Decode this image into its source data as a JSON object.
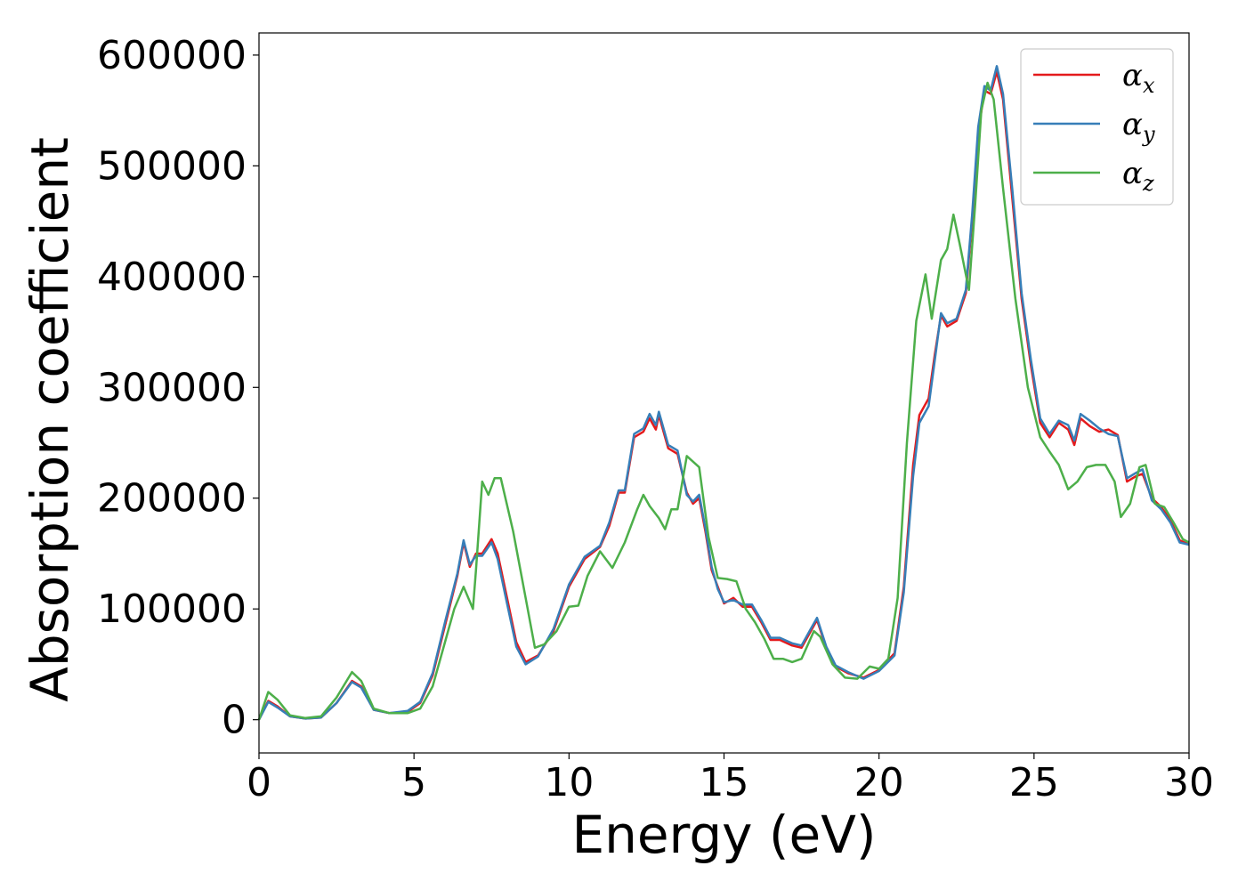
{
  "chart_data": {
    "type": "line",
    "title": "",
    "xlabel": "Energy (eV)",
    "ylabel": "Absorption coefficient",
    "xlim": [
      0,
      30
    ],
    "ylim": [
      -30000,
      620000
    ],
    "xticks": [
      0,
      5,
      10,
      15,
      20,
      25,
      30
    ],
    "yticks": [
      0,
      100000,
      200000,
      300000,
      400000,
      500000,
      600000
    ],
    "grid": false,
    "legend_position": "top-right",
    "series": [
      {
        "name": "αx",
        "symbol": "α",
        "subscript": "x",
        "color": "#e41a1c",
        "points": [
          [
            0,
            0
          ],
          [
            0.3,
            17000
          ],
          [
            0.6,
            12000
          ],
          [
            1.0,
            3000
          ],
          [
            1.5,
            1000
          ],
          [
            2.0,
            2000
          ],
          [
            2.5,
            15000
          ],
          [
            3.0,
            35000
          ],
          [
            3.3,
            30000
          ],
          [
            3.7,
            9000
          ],
          [
            4.2,
            6000
          ],
          [
            4.8,
            7000
          ],
          [
            5.2,
            15000
          ],
          [
            5.6,
            40000
          ],
          [
            6.0,
            85000
          ],
          [
            6.4,
            130000
          ],
          [
            6.6,
            160000
          ],
          [
            6.8,
            138000
          ],
          [
            7.0,
            150000
          ],
          [
            7.2,
            150000
          ],
          [
            7.5,
            163000
          ],
          [
            7.7,
            150000
          ],
          [
            8.0,
            110000
          ],
          [
            8.3,
            70000
          ],
          [
            8.6,
            52000
          ],
          [
            9.0,
            58000
          ],
          [
            9.5,
            80000
          ],
          [
            10.0,
            120000
          ],
          [
            10.5,
            145000
          ],
          [
            11.0,
            156000
          ],
          [
            11.3,
            175000
          ],
          [
            11.6,
            205000
          ],
          [
            11.8,
            205000
          ],
          [
            12.1,
            255000
          ],
          [
            12.4,
            260000
          ],
          [
            12.6,
            272000
          ],
          [
            12.8,
            262000
          ],
          [
            12.9,
            275000
          ],
          [
            13.2,
            245000
          ],
          [
            13.5,
            240000
          ],
          [
            13.8,
            205000
          ],
          [
            14.0,
            195000
          ],
          [
            14.2,
            200000
          ],
          [
            14.4,
            170000
          ],
          [
            14.6,
            135000
          ],
          [
            14.8,
            120000
          ],
          [
            15.0,
            105000
          ],
          [
            15.3,
            110000
          ],
          [
            15.6,
            102000
          ],
          [
            15.9,
            102000
          ],
          [
            16.2,
            88000
          ],
          [
            16.5,
            72000
          ],
          [
            16.8,
            72000
          ],
          [
            17.2,
            67000
          ],
          [
            17.5,
            65000
          ],
          [
            17.8,
            80000
          ],
          [
            18.0,
            90000
          ],
          [
            18.3,
            65000
          ],
          [
            18.6,
            48000
          ],
          [
            19.0,
            42000
          ],
          [
            19.5,
            38000
          ],
          [
            20.0,
            45000
          ],
          [
            20.5,
            60000
          ],
          [
            20.8,
            120000
          ],
          [
            21.1,
            230000
          ],
          [
            21.3,
            275000
          ],
          [
            21.6,
            290000
          ],
          [
            21.8,
            330000
          ],
          [
            22.0,
            365000
          ],
          [
            22.2,
            355000
          ],
          [
            22.5,
            360000
          ],
          [
            22.8,
            385000
          ],
          [
            23.0,
            450000
          ],
          [
            23.2,
            530000
          ],
          [
            23.4,
            568000
          ],
          [
            23.6,
            565000
          ],
          [
            23.8,
            585000
          ],
          [
            24.0,
            560000
          ],
          [
            24.3,
            470000
          ],
          [
            24.6,
            380000
          ],
          [
            24.9,
            320000
          ],
          [
            25.2,
            268000
          ],
          [
            25.5,
            255000
          ],
          [
            25.8,
            268000
          ],
          [
            26.1,
            262000
          ],
          [
            26.3,
            248000
          ],
          [
            26.5,
            272000
          ],
          [
            26.8,
            265000
          ],
          [
            27.1,
            260000
          ],
          [
            27.4,
            262000
          ],
          [
            27.7,
            257000
          ],
          [
            28.0,
            215000
          ],
          [
            28.3,
            220000
          ],
          [
            28.5,
            222000
          ],
          [
            28.8,
            200000
          ],
          [
            29.1,
            192000
          ],
          [
            29.4,
            180000
          ],
          [
            29.7,
            162000
          ],
          [
            30.0,
            158000
          ]
        ]
      },
      {
        "name": "αy",
        "symbol": "α",
        "subscript": "y",
        "color": "#377eb8",
        "points": [
          [
            0,
            0
          ],
          [
            0.3,
            16000
          ],
          [
            0.6,
            11000
          ],
          [
            1.0,
            3000
          ],
          [
            1.5,
            1000
          ],
          [
            2.0,
            2000
          ],
          [
            2.5,
            15000
          ],
          [
            3.0,
            34000
          ],
          [
            3.3,
            29000
          ],
          [
            3.7,
            9000
          ],
          [
            4.2,
            6000
          ],
          [
            4.8,
            8000
          ],
          [
            5.2,
            16000
          ],
          [
            5.6,
            42000
          ],
          [
            6.0,
            88000
          ],
          [
            6.4,
            132000
          ],
          [
            6.6,
            162000
          ],
          [
            6.8,
            140000
          ],
          [
            7.0,
            148000
          ],
          [
            7.2,
            148000
          ],
          [
            7.5,
            160000
          ],
          [
            7.7,
            145000
          ],
          [
            8.0,
            105000
          ],
          [
            8.3,
            66000
          ],
          [
            8.6,
            50000
          ],
          [
            9.0,
            57000
          ],
          [
            9.5,
            82000
          ],
          [
            10.0,
            122000
          ],
          [
            10.5,
            147000
          ],
          [
            11.0,
            157000
          ],
          [
            11.3,
            178000
          ],
          [
            11.6,
            207000
          ],
          [
            11.8,
            207000
          ],
          [
            12.1,
            258000
          ],
          [
            12.4,
            263000
          ],
          [
            12.6,
            276000
          ],
          [
            12.8,
            266000
          ],
          [
            12.9,
            278000
          ],
          [
            13.2,
            248000
          ],
          [
            13.5,
            243000
          ],
          [
            13.8,
            203000
          ],
          [
            14.0,
            197000
          ],
          [
            14.2,
            203000
          ],
          [
            14.4,
            173000
          ],
          [
            14.6,
            138000
          ],
          [
            14.8,
            118000
          ],
          [
            15.0,
            106000
          ],
          [
            15.3,
            108000
          ],
          [
            15.6,
            104000
          ],
          [
            15.9,
            104000
          ],
          [
            16.2,
            90000
          ],
          [
            16.5,
            74000
          ],
          [
            16.8,
            74000
          ],
          [
            17.2,
            69000
          ],
          [
            17.5,
            67000
          ],
          [
            17.8,
            82000
          ],
          [
            18.0,
            92000
          ],
          [
            18.3,
            66000
          ],
          [
            18.6,
            49000
          ],
          [
            19.0,
            43000
          ],
          [
            19.5,
            37000
          ],
          [
            20.0,
            44000
          ],
          [
            20.5,
            58000
          ],
          [
            20.8,
            115000
          ],
          [
            21.1,
            220000
          ],
          [
            21.3,
            268000
          ],
          [
            21.6,
            283000
          ],
          [
            21.8,
            325000
          ],
          [
            22.0,
            367000
          ],
          [
            22.2,
            358000
          ],
          [
            22.5,
            362000
          ],
          [
            22.8,
            388000
          ],
          [
            23.0,
            455000
          ],
          [
            23.2,
            535000
          ],
          [
            23.4,
            572000
          ],
          [
            23.6,
            568000
          ],
          [
            23.8,
            590000
          ],
          [
            24.0,
            565000
          ],
          [
            24.3,
            478000
          ],
          [
            24.6,
            385000
          ],
          [
            24.9,
            325000
          ],
          [
            25.2,
            272000
          ],
          [
            25.5,
            258000
          ],
          [
            25.8,
            270000
          ],
          [
            26.1,
            266000
          ],
          [
            26.3,
            252000
          ],
          [
            26.5,
            276000
          ],
          [
            26.8,
            270000
          ],
          [
            27.1,
            263000
          ],
          [
            27.4,
            258000
          ],
          [
            27.7,
            256000
          ],
          [
            28.0,
            218000
          ],
          [
            28.3,
            223000
          ],
          [
            28.5,
            226000
          ],
          [
            28.8,
            198000
          ],
          [
            29.1,
            190000
          ],
          [
            29.4,
            178000
          ],
          [
            29.7,
            160000
          ],
          [
            30.0,
            158000
          ]
        ]
      },
      {
        "name": "αz",
        "symbol": "α",
        "subscript": "z",
        "color": "#4daf4a",
        "points": [
          [
            0,
            0
          ],
          [
            0.3,
            25000
          ],
          [
            0.6,
            18000
          ],
          [
            1.0,
            4000
          ],
          [
            1.5,
            1500
          ],
          [
            2.0,
            3000
          ],
          [
            2.5,
            20000
          ],
          [
            3.0,
            43000
          ],
          [
            3.3,
            35000
          ],
          [
            3.7,
            10000
          ],
          [
            4.2,
            6000
          ],
          [
            4.8,
            6000
          ],
          [
            5.2,
            10000
          ],
          [
            5.6,
            30000
          ],
          [
            6.0,
            70000
          ],
          [
            6.3,
            100000
          ],
          [
            6.6,
            120000
          ],
          [
            6.9,
            100000
          ],
          [
            7.0,
            135000
          ],
          [
            7.2,
            215000
          ],
          [
            7.4,
            203000
          ],
          [
            7.6,
            218000
          ],
          [
            7.8,
            218000
          ],
          [
            8.2,
            170000
          ],
          [
            8.6,
            110000
          ],
          [
            8.9,
            65000
          ],
          [
            9.2,
            68000
          ],
          [
            9.6,
            80000
          ],
          [
            10.0,
            102000
          ],
          [
            10.3,
            103000
          ],
          [
            10.6,
            130000
          ],
          [
            11.0,
            152000
          ],
          [
            11.4,
            137000
          ],
          [
            11.8,
            160000
          ],
          [
            12.2,
            190000
          ],
          [
            12.4,
            203000
          ],
          [
            12.6,
            193000
          ],
          [
            12.9,
            182000
          ],
          [
            13.1,
            172000
          ],
          [
            13.3,
            190000
          ],
          [
            13.5,
            190000
          ],
          [
            13.8,
            238000
          ],
          [
            14.2,
            228000
          ],
          [
            14.5,
            165000
          ],
          [
            14.8,
            128000
          ],
          [
            15.1,
            127000
          ],
          [
            15.4,
            125000
          ],
          [
            15.7,
            100000
          ],
          [
            16.0,
            88000
          ],
          [
            16.3,
            73000
          ],
          [
            16.6,
            55000
          ],
          [
            16.9,
            55000
          ],
          [
            17.2,
            52000
          ],
          [
            17.5,
            55000
          ],
          [
            17.9,
            80000
          ],
          [
            18.1,
            75000
          ],
          [
            18.5,
            50000
          ],
          [
            18.9,
            38000
          ],
          [
            19.3,
            37000
          ],
          [
            19.7,
            48000
          ],
          [
            20.0,
            46000
          ],
          [
            20.3,
            55000
          ],
          [
            20.6,
            110000
          ],
          [
            20.9,
            250000
          ],
          [
            21.2,
            360000
          ],
          [
            21.5,
            402000
          ],
          [
            21.7,
            362000
          ],
          [
            22.0,
            415000
          ],
          [
            22.2,
            425000
          ],
          [
            22.4,
            456000
          ],
          [
            22.6,
            430000
          ],
          [
            22.9,
            388000
          ],
          [
            23.1,
            465000
          ],
          [
            23.3,
            550000
          ],
          [
            23.5,
            575000
          ],
          [
            23.7,
            560000
          ],
          [
            24.0,
            480000
          ],
          [
            24.4,
            380000
          ],
          [
            24.8,
            300000
          ],
          [
            25.2,
            255000
          ],
          [
            25.5,
            242000
          ],
          [
            25.8,
            230000
          ],
          [
            26.1,
            208000
          ],
          [
            26.4,
            215000
          ],
          [
            26.7,
            228000
          ],
          [
            27.0,
            230000
          ],
          [
            27.3,
            230000
          ],
          [
            27.6,
            215000
          ],
          [
            27.8,
            183000
          ],
          [
            28.1,
            195000
          ],
          [
            28.4,
            228000
          ],
          [
            28.6,
            230000
          ],
          [
            28.9,
            195000
          ],
          [
            29.2,
            192000
          ],
          [
            29.5,
            178000
          ],
          [
            29.8,
            163000
          ],
          [
            30.0,
            160000
          ]
        ]
      }
    ]
  }
}
